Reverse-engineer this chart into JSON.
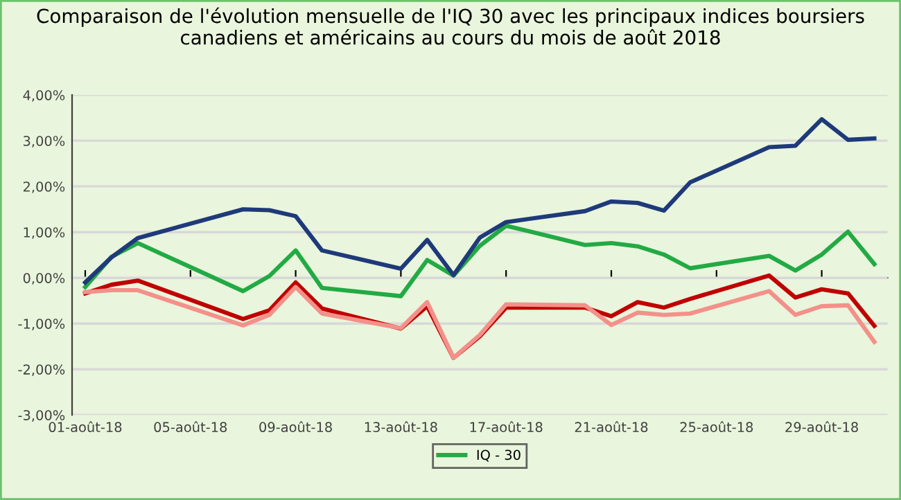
{
  "chart_data": {
    "type": "line",
    "title": "Comparaison de l'évolution mensuelle de l'IQ 30 avec les principaux indices boursiers canadiens et américains au cours du mois de août 2018",
    "x": [
      "2018-08-01",
      "2018-08-02",
      "2018-08-03",
      "2018-08-07",
      "2018-08-08",
      "2018-08-09",
      "2018-08-10",
      "2018-08-13",
      "2018-08-14",
      "2018-08-15",
      "2018-08-16",
      "2018-08-17",
      "2018-08-20",
      "2018-08-21",
      "2018-08-22",
      "2018-08-23",
      "2018-08-24",
      "2018-08-27",
      "2018-08-28",
      "2018-08-29",
      "2018-08-30",
      "2018-08-31"
    ],
    "series": [
      {
        "name": "IQ - 30",
        "color": "#22aa44",
        "values": [
          -0.2,
          0.46,
          0.76,
          -0.29,
          0.04,
          0.6,
          -0.22,
          -0.4,
          0.39,
          0.05,
          0.7,
          1.14,
          0.72,
          0.76,
          0.69,
          0.51,
          0.21,
          0.48,
          0.16,
          0.51,
          1.01,
          0.3
        ]
      },
      {
        "color": "#c00000",
        "values": [
          -0.34,
          -0.15,
          -0.06,
          -0.9,
          -0.71,
          -0.1,
          -0.67,
          -1.11,
          -0.62,
          -1.75,
          -1.28,
          -0.65,
          -0.65,
          -0.84,
          -0.53,
          -0.65,
          -0.46,
          0.05,
          -0.43,
          -0.25,
          -0.34,
          -1.05
        ]
      },
      {
        "color": "#f4908a",
        "values": [
          -0.31,
          -0.27,
          -0.27,
          -1.04,
          -0.81,
          -0.2,
          -0.78,
          -1.1,
          -0.53,
          -1.75,
          -1.25,
          -0.58,
          -0.6,
          -1.03,
          -0.76,
          -0.81,
          -0.78,
          -0.29,
          -0.81,
          -0.62,
          -0.6,
          -1.4
        ]
      },
      {
        "color": "#1f3a7a",
        "values": [
          -0.1,
          0.45,
          0.87,
          1.5,
          1.48,
          1.35,
          0.6,
          0.2,
          0.83,
          0.06,
          0.88,
          1.22,
          1.46,
          1.67,
          1.64,
          1.47,
          2.09,
          2.86,
          2.89,
          3.47,
          3.02,
          3.05
        ]
      }
    ],
    "ylim": [
      -3,
      4
    ],
    "yticks": [
      {
        "value": -3,
        "label": "-3,00%"
      },
      {
        "value": -2,
        "label": "-2,00%"
      },
      {
        "value": -1,
        "label": "-1,00%"
      },
      {
        "value": 0,
        "label": "0,00%"
      },
      {
        "value": 1,
        "label": "1,00%"
      },
      {
        "value": 2,
        "label": "2,00%"
      },
      {
        "value": 3,
        "label": "3,00%"
      },
      {
        "value": 4,
        "label": "4,00%"
      }
    ],
    "xlim": [
      "2018-07-31T12:00",
      "2018-08-31T12:00"
    ],
    "xticks": [
      {
        "value": "2018-08-01",
        "label": "01-août-18"
      },
      {
        "value": "2018-08-05",
        "label": "05-août-18"
      },
      {
        "value": "2018-08-09",
        "label": "09-août-18"
      },
      {
        "value": "2018-08-13",
        "label": "13-août-18"
      },
      {
        "value": "2018-08-17",
        "label": "17-août-18"
      },
      {
        "value": "2018-08-21",
        "label": "21-août-18"
      },
      {
        "value": "2018-08-25",
        "label": "25-août-18"
      },
      {
        "value": "2018-08-29",
        "label": "29-août-18"
      }
    ],
    "grid": "y",
    "legend": "bottom",
    "marker": "none",
    "line_style": "solid"
  }
}
